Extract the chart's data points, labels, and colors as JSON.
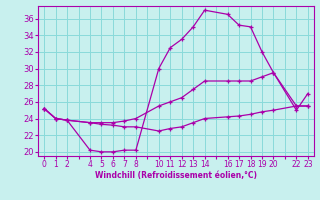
{
  "xlabel": "Windchill (Refroidissement éolien,°C)",
  "bg_color": "#c8f0ee",
  "grid_color": "#8adada",
  "line_color": "#aa00aa",
  "xlim": [
    -0.5,
    23.5
  ],
  "ylim": [
    19.5,
    37.5
  ],
  "xticks_all": [
    0,
    1,
    2,
    3,
    4,
    5,
    6,
    7,
    8,
    9,
    10,
    11,
    12,
    13,
    14,
    15,
    16,
    17,
    18,
    19,
    20,
    21,
    22,
    23
  ],
  "xtick_labels": {
    "0": "0",
    "1": "1",
    "2": "2",
    "3": "",
    "4": "4",
    "5": "5",
    "6": "6",
    "7": "7",
    "8": "8",
    "9": "",
    "10": "10",
    "11": "11",
    "12": "12",
    "13": "13",
    "14": "14",
    "15": "",
    "16": "16",
    "17": "17",
    "18": "18",
    "19": "19",
    "20": "20",
    "21": "",
    "22": "22",
    "23": "23"
  },
  "yticks": [
    20,
    22,
    24,
    26,
    28,
    30,
    32,
    34,
    36
  ],
  "series": [
    {
      "x": [
        0,
        1,
        2,
        4,
        5,
        6,
        7,
        8,
        10,
        11,
        12,
        13,
        14,
        16,
        17,
        18,
        19,
        20,
        22,
        23
      ],
      "y": [
        25.2,
        24.0,
        23.8,
        20.2,
        20.0,
        20.0,
        20.2,
        20.2,
        30.0,
        32.5,
        33.5,
        35.0,
        37.0,
        36.5,
        35.2,
        35.0,
        32.0,
        29.5,
        25.0,
        27.0
      ]
    },
    {
      "x": [
        0,
        1,
        2,
        4,
        5,
        6,
        7,
        8,
        10,
        11,
        12,
        13,
        14,
        16,
        17,
        18,
        19,
        20,
        22,
        23
      ],
      "y": [
        25.2,
        24.0,
        23.8,
        23.5,
        23.5,
        23.5,
        23.7,
        24.0,
        25.5,
        26.0,
        26.5,
        27.5,
        28.5,
        28.5,
        28.5,
        28.5,
        29.0,
        29.5,
        25.5,
        25.5
      ]
    },
    {
      "x": [
        0,
        1,
        2,
        4,
        5,
        6,
        7,
        8,
        10,
        11,
        12,
        13,
        14,
        16,
        17,
        18,
        19,
        20,
        22,
        23
      ],
      "y": [
        25.2,
        24.0,
        23.8,
        23.5,
        23.3,
        23.2,
        23.0,
        23.0,
        22.5,
        22.8,
        23.0,
        23.5,
        24.0,
        24.2,
        24.3,
        24.5,
        24.8,
        25.0,
        25.5,
        25.5
      ]
    }
  ]
}
